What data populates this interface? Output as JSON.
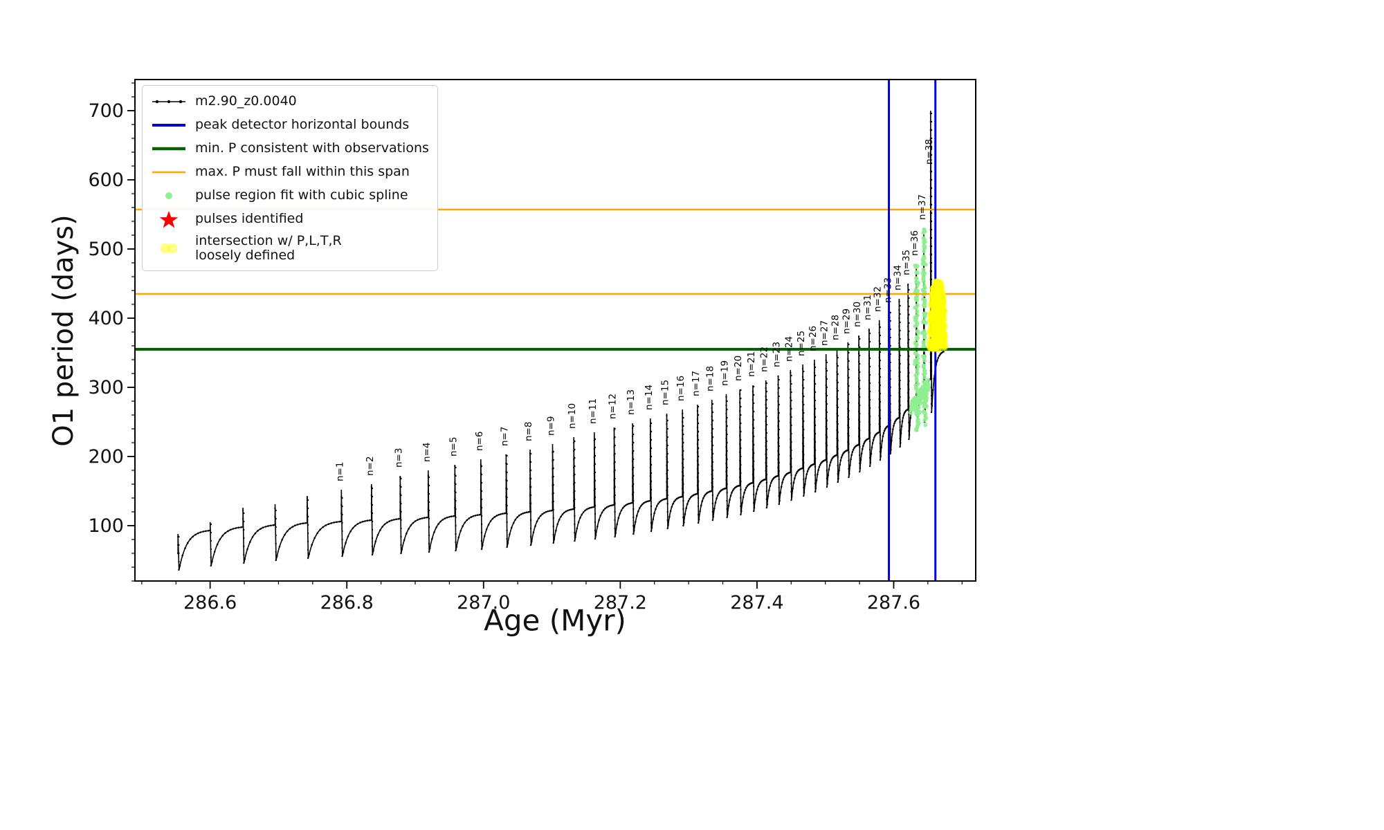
{
  "chart_data": {
    "type": "line",
    "title": "",
    "xlabel": "Age (Myr)",
    "ylabel": "O1 period (days)",
    "xlim": [
      286.49,
      287.72
    ],
    "ylim": [
      20,
      745
    ],
    "grid": false,
    "legend_position": "upper left",
    "series_name": "m2.90_z0.0040",
    "x_ticks": {
      "major": [
        286.6,
        286.8,
        287.0,
        287.2,
        287.4,
        287.6
      ],
      "labels": [
        "286.6",
        "286.8",
        "287.0",
        "287.2",
        "287.4",
        "287.6"
      ],
      "minor_step": 0.05
    },
    "y_ticks": {
      "major": [
        100,
        200,
        300,
        400,
        500,
        600,
        700
      ],
      "labels": [
        "100",
        "200",
        "300",
        "400",
        "500",
        "600",
        "700"
      ],
      "minor_step": 20
    },
    "colors": {
      "series": "#000000",
      "blue": "#0000e6",
      "green": "#006400",
      "orange": "#ffa500",
      "light_green": "#90ee90",
      "red": "#ff0000",
      "yellow": "#ffff00",
      "spine": "#000000"
    },
    "hlines": {
      "min_P_consistent": 355,
      "max_P_span": [
        435,
        557
      ]
    },
    "vlines": {
      "peak_detector_bounds": [
        287.593,
        287.661
      ]
    },
    "pulses": {
      "times": [
        286.553,
        286.6,
        286.648,
        286.695,
        286.742,
        286.792,
        286.836,
        286.878,
        286.919,
        286.958,
        286.996,
        287.033,
        287.068,
        287.101,
        287.132,
        287.162,
        287.191,
        287.218,
        287.244,
        287.268,
        287.291,
        287.313,
        287.334,
        287.355,
        287.375,
        287.394,
        287.413,
        287.431,
        287.449,
        287.467,
        287.484,
        287.501,
        287.517,
        287.533,
        287.549,
        287.564,
        287.579,
        287.594,
        287.608,
        287.621,
        287.633,
        287.644,
        287.654
      ],
      "labels": [
        null,
        null,
        null,
        null,
        null,
        "n=1",
        "n=2",
        "n=3",
        "n=4",
        "n=5",
        "n=6",
        "n=7",
        "n=8",
        "n=9",
        "n=10",
        "n=11",
        "n=12",
        "n=13",
        "n=14",
        "n=15",
        "n=16",
        "n=17",
        "n=18",
        "n=19",
        "n=20",
        "n=21",
        "n=22",
        "n=23",
        "n=24",
        "n=25",
        "n=26",
        "n=27",
        "n=28",
        "n=29",
        "n=30",
        "n=31",
        "n=32",
        "n=33",
        "n=34",
        "n=35",
        "n=36",
        "n=37",
        "n=38"
      ],
      "peaks": [
        88,
        105,
        126,
        131,
        143,
        152,
        160,
        172,
        180,
        188,
        196,
        203,
        210,
        218,
        228,
        235,
        242,
        248,
        255,
        262,
        268,
        275,
        282,
        290,
        297,
        303,
        310,
        317,
        325,
        333,
        340,
        348,
        356,
        365,
        375,
        385,
        397,
        410,
        428,
        450,
        478,
        530,
        700
      ],
      "bases": [
        60,
        93,
        98,
        101,
        104,
        106,
        108,
        110,
        112,
        114,
        116,
        118,
        120,
        122,
        124,
        127,
        130,
        133,
        136,
        139,
        142,
        146,
        150,
        154,
        158,
        162,
        167,
        172,
        177,
        183,
        189,
        195,
        202,
        209,
        217,
        226,
        235,
        245,
        256,
        268,
        281,
        296,
        312
      ],
      "dips": [
        36,
        42,
        46,
        50,
        53,
        56,
        58,
        60,
        62,
        64,
        66,
        69,
        72,
        75,
        78,
        81,
        84,
        88,
        92,
        96,
        100,
        104,
        108,
        112,
        116,
        121,
        126,
        131,
        137,
        143,
        149,
        156,
        163,
        170,
        178,
        186,
        195,
        204,
        214,
        225,
        237,
        250,
        264
      ]
    },
    "curve_end": {
      "t": 287.674,
      "value": 352
    },
    "spline_region": {
      "t_start": 287.626,
      "t_end": 287.65
    },
    "intersection_region": {
      "t_center": 287.664,
      "t_halfwidth": 0.011,
      "y_min": 355,
      "y_max": 452
    }
  },
  "legend": {
    "entries": [
      {
        "label": "m2.90_z0.0040"
      },
      {
        "label": "peak detector horizontal bounds"
      },
      {
        "label": "min. P consistent with observations"
      },
      {
        "label": "max. P must fall within this span"
      },
      {
        "label": "pulse region fit with cubic spline"
      },
      {
        "label": "pulses identified"
      },
      {
        "label": "intersection w/ P,L,T,R",
        "label2": "loosely defined"
      }
    ]
  }
}
